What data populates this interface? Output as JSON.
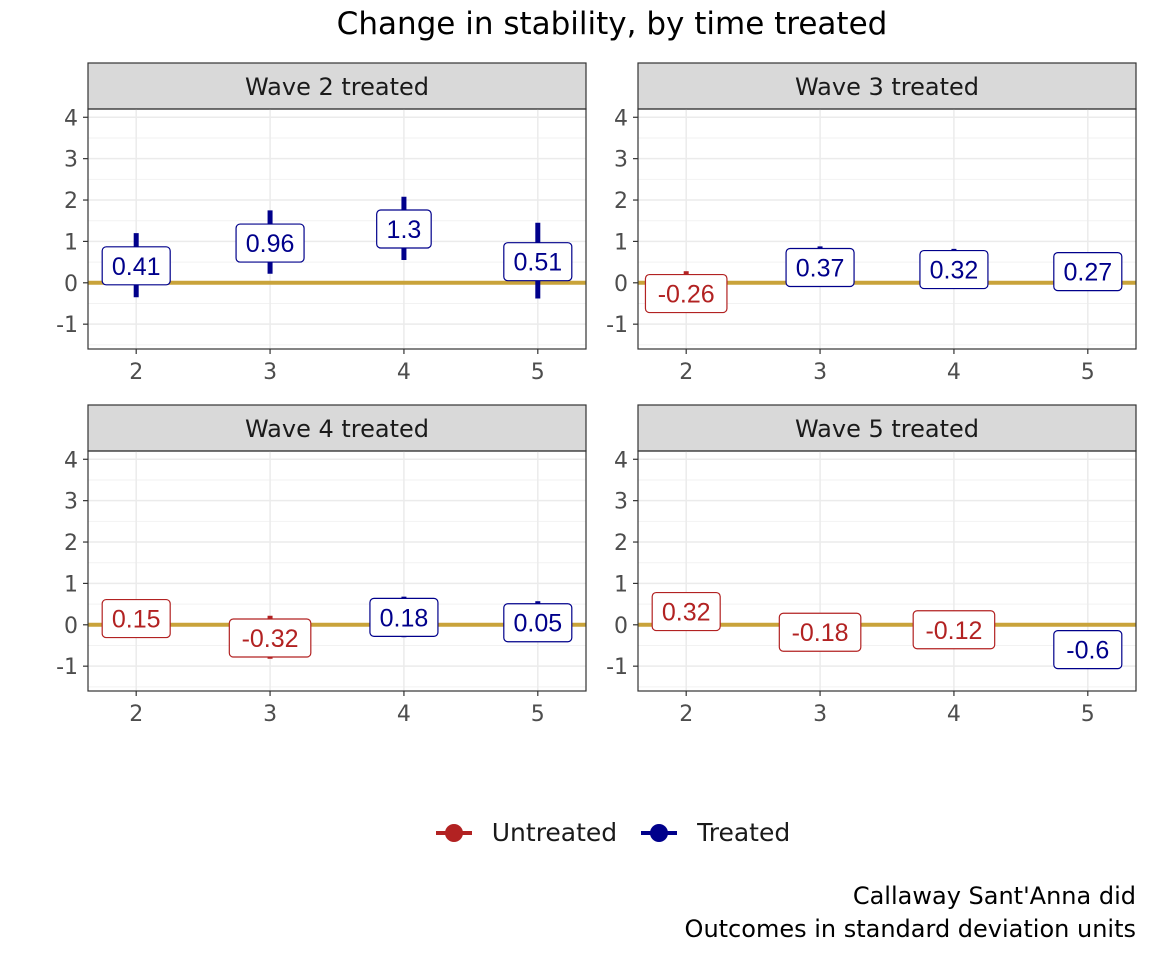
{
  "chart_data": {
    "type": "scatter",
    "title": "Change in stability, by time treated",
    "xlabel": "",
    "ylabel": "",
    "x_ticks": [
      2,
      3,
      4,
      5
    ],
    "y_ticks": [
      -1,
      0,
      1,
      2,
      3,
      4
    ],
    "ylim": [
      -1.6,
      4.2
    ],
    "grid": true,
    "reference_line": {
      "y": 0,
      "color": "#C9A33A"
    },
    "legend": {
      "position": "bottom",
      "entries": [
        {
          "label": "Untreated",
          "color": "#B22222"
        },
        {
          "label": "Treated",
          "color": "#00008B"
        }
      ]
    },
    "panels": [
      {
        "label": "Wave 2 treated",
        "points": [
          {
            "x": 2,
            "y": 0.41,
            "label": "0.41",
            "lower": -0.35,
            "upper": 1.2,
            "group": "Treated"
          },
          {
            "x": 3,
            "y": 0.96,
            "label": "0.96",
            "lower": 0.22,
            "upper": 1.75,
            "group": "Treated"
          },
          {
            "x": 4,
            "y": 1.3,
            "label": "1.3",
            "lower": 0.55,
            "upper": 2.08,
            "group": "Treated"
          },
          {
            "x": 5,
            "y": 0.51,
            "label": "0.51",
            "lower": -0.38,
            "upper": 1.45,
            "group": "Treated"
          }
        ]
      },
      {
        "label": "Wave 3 treated",
        "points": [
          {
            "x": 2,
            "y": -0.26,
            "label": "-0.26",
            "lower": -0.32,
            "upper": 0.28,
            "group": "Untreated"
          },
          {
            "x": 3,
            "y": 0.37,
            "label": "0.37",
            "lower": 0.3,
            "upper": 0.88,
            "group": "Treated"
          },
          {
            "x": 4,
            "y": 0.32,
            "label": "0.32",
            "lower": -0.15,
            "upper": 0.82,
            "group": "Treated"
          },
          {
            "x": 5,
            "y": 0.27,
            "label": "0.27",
            "lower": 0.2,
            "upper": 0.35,
            "group": "Treated"
          }
        ]
      },
      {
        "label": "Wave 4 treated",
        "points": [
          {
            "x": 2,
            "y": 0.15,
            "label": "0.15",
            "lower": 0.1,
            "upper": 0.2,
            "group": "Untreated"
          },
          {
            "x": 3,
            "y": -0.32,
            "label": "-0.32",
            "lower": -0.82,
            "upper": 0.22,
            "group": "Untreated"
          },
          {
            "x": 4,
            "y": 0.18,
            "label": "0.18",
            "lower": -0.3,
            "upper": 0.68,
            "group": "Treated"
          },
          {
            "x": 5,
            "y": 0.05,
            "label": "0.05",
            "lower": -0.05,
            "upper": 0.57,
            "group": "Treated"
          }
        ]
      },
      {
        "label": "Wave 5 treated",
        "points": [
          {
            "x": 2,
            "y": 0.32,
            "label": "0.32",
            "lower": 0.27,
            "upper": 0.37,
            "group": "Untreated"
          },
          {
            "x": 3,
            "y": -0.18,
            "label": "-0.18",
            "lower": -0.23,
            "upper": -0.13,
            "group": "Untreated"
          },
          {
            "x": 4,
            "y": -0.12,
            "label": "-0.12",
            "lower": -0.17,
            "upper": -0.07,
            "group": "Untreated"
          },
          {
            "x": 5,
            "y": -0.6,
            "label": "-0.6",
            "lower": -0.65,
            "upper": -0.55,
            "group": "Treated"
          }
        ]
      }
    ],
    "caption": [
      "Callaway Sant'Anna did",
      "Outcomes in standard deviation units"
    ]
  }
}
